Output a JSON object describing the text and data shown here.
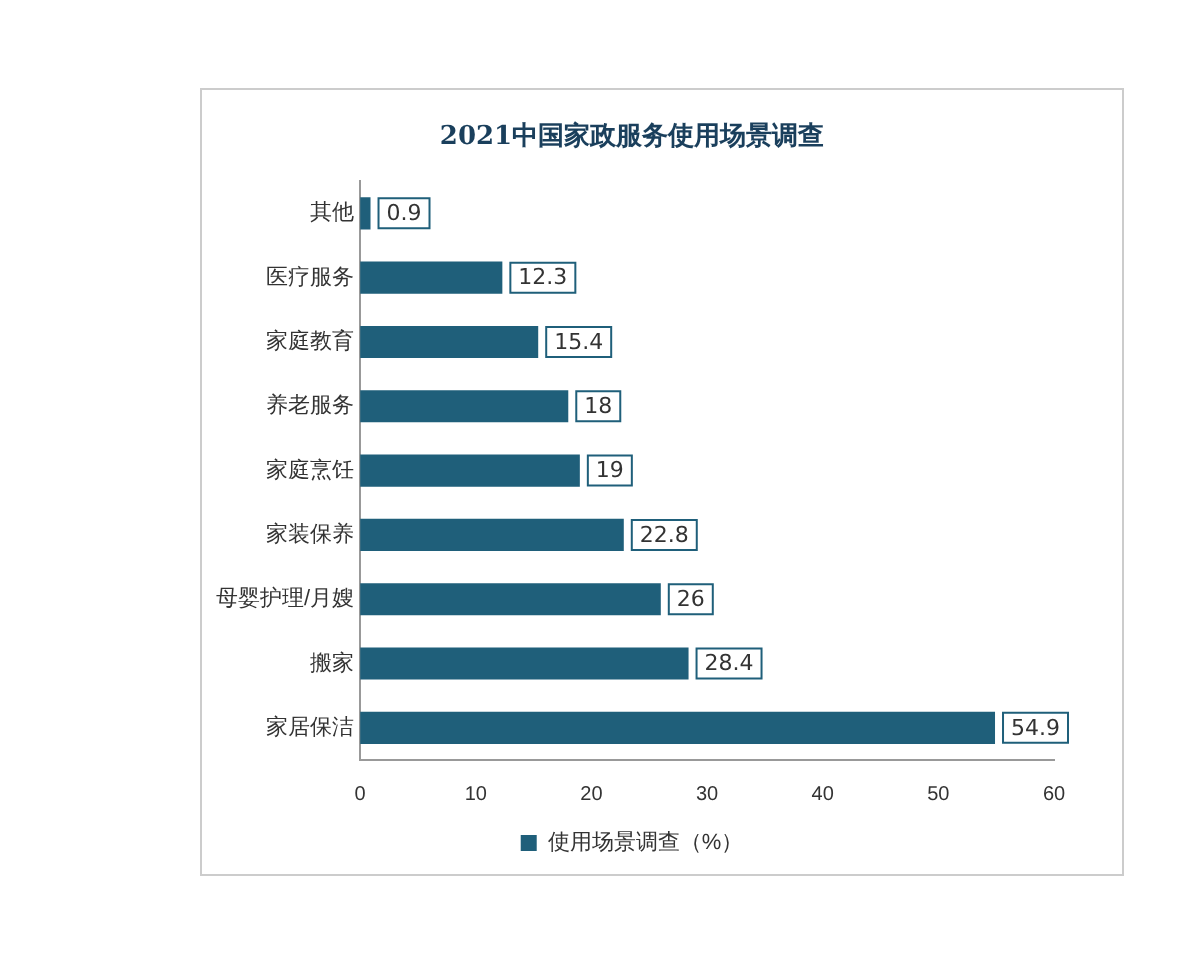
{
  "chart_data": {
    "type": "bar",
    "orientation": "horizontal",
    "title": "2021中国家政服务使用场景调查",
    "categories": [
      "其他",
      "医疗服务",
      "家庭教育",
      "养老服务",
      "家庭烹饪",
      "家装保养",
      "母婴护理/月嫂",
      "搬家",
      "家居保洁"
    ],
    "series": [
      {
        "name": "使用场景调查（%）",
        "color": "#1f5f7a",
        "values": [
          0.9,
          12.3,
          15.4,
          18,
          19,
          22.8,
          26,
          28.4,
          54.9
        ]
      }
    ],
    "xlim": [
      0,
      60
    ],
    "xticks": [
      0,
      10,
      20,
      30,
      40,
      50,
      60
    ],
    "grid": false,
    "legend": "bottom",
    "data_labels": true
  }
}
